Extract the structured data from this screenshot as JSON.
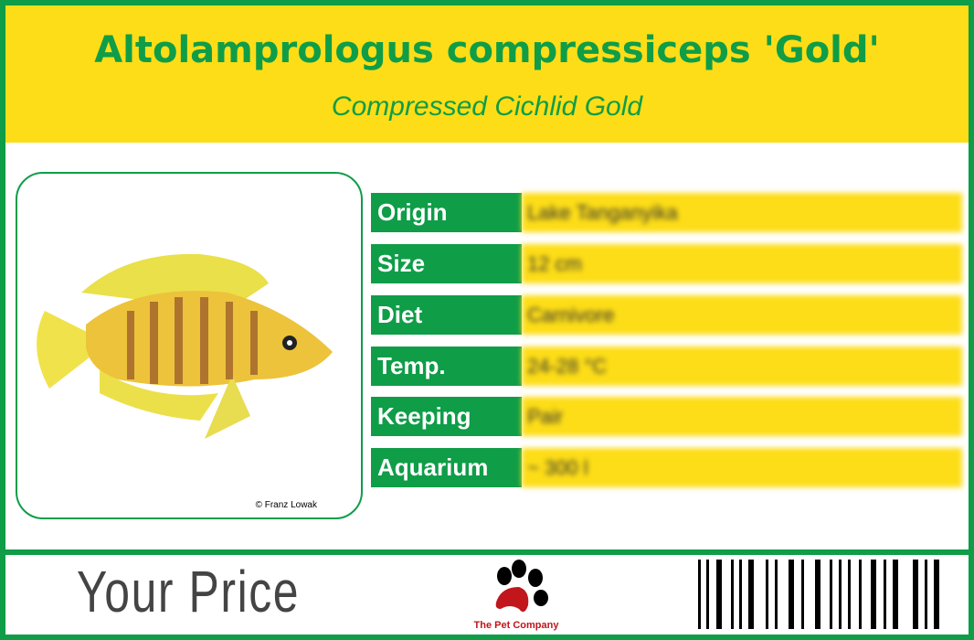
{
  "header": {
    "title": "Altolamprologus compressiceps 'Gold'",
    "subtitle": "Compressed Cichlid Gold"
  },
  "photo": {
    "credit": "© Franz Lowak",
    "subject": "yellow-striped-cichlid-fish"
  },
  "facts": [
    {
      "label": "Origin",
      "value": "Lake Tanganyika"
    },
    {
      "label": "Size",
      "value": "12 cm"
    },
    {
      "label": "Diet",
      "value": "Carnivore"
    },
    {
      "label": "Temp.",
      "value": "24-28 °C"
    },
    {
      "label": "Keeping",
      "value": "Pair"
    },
    {
      "label": "Aquarium",
      "value": "~ 300 l"
    }
  ],
  "footer": {
    "price_label": "Your Price",
    "logo_text": "The Pet Company"
  },
  "colors": {
    "green": "#0f9d48",
    "yellow": "#fddd17",
    "logo_red": "#c0161c"
  }
}
